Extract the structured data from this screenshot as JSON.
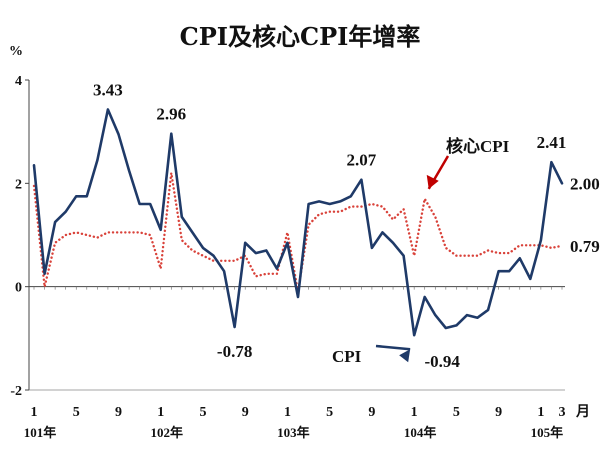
{
  "chart_data": {
    "type": "line",
    "title": "CPI及核心CPI年增率",
    "ylabel": "%",
    "xlabel": "月",
    "ylim": [
      -2,
      4
    ],
    "y_ticks": [
      "-2",
      "0",
      "2",
      "4"
    ],
    "x_tick_labels": [
      {
        "i": 0,
        "label": "1"
      },
      {
        "i": 4,
        "label": "5"
      },
      {
        "i": 8,
        "label": "9"
      },
      {
        "i": 12,
        "label": "1"
      },
      {
        "i": 16,
        "label": "5"
      },
      {
        "i": 20,
        "label": "9"
      },
      {
        "i": 24,
        "label": "1"
      },
      {
        "i": 28,
        "label": "5"
      },
      {
        "i": 32,
        "label": "9"
      },
      {
        "i": 36,
        "label": "1"
      },
      {
        "i": 40,
        "label": "5"
      },
      {
        "i": 44,
        "label": "9"
      },
      {
        "i": 48,
        "label": "1"
      },
      {
        "i": 50,
        "label": "3"
      }
    ],
    "year_labels": [
      {
        "i": 0,
        "label": "101年"
      },
      {
        "i": 12,
        "label": "102年"
      },
      {
        "i": 24,
        "label": "103年"
      },
      {
        "i": 36,
        "label": "104年"
      },
      {
        "i": 48,
        "label": "105年"
      }
    ],
    "series": [
      {
        "name": "CPI",
        "color": "#1f3a68",
        "style": "solid",
        "values": [
          2.35,
          0.25,
          1.25,
          1.45,
          1.75,
          1.75,
          2.45,
          3.43,
          2.95,
          2.25,
          1.6,
          1.6,
          1.1,
          2.96,
          1.35,
          1.05,
          0.75,
          0.6,
          0.3,
          -0.78,
          0.85,
          0.65,
          0.7,
          0.35,
          0.85,
          -0.2,
          1.6,
          1.65,
          1.6,
          1.65,
          1.75,
          2.07,
          0.75,
          1.05,
          0.85,
          0.6,
          -0.94,
          -0.2,
          -0.55,
          -0.8,
          -0.75,
          -0.55,
          -0.6,
          -0.45,
          0.3,
          0.3,
          0.55,
          0.15,
          0.9,
          2.41,
          2.0
        ]
      },
      {
        "name": "核心CPI",
        "color": "#d9423a",
        "style": "dotted",
        "values": [
          1.95,
          0.0,
          0.85,
          1.0,
          1.05,
          1.0,
          0.95,
          1.05,
          1.05,
          1.05,
          1.05,
          1.0,
          0.35,
          2.2,
          0.9,
          0.7,
          0.6,
          0.5,
          0.5,
          0.5,
          0.6,
          0.2,
          0.25,
          0.25,
          1.05,
          -0.1,
          1.2,
          1.4,
          1.45,
          1.45,
          1.55,
          1.55,
          1.6,
          1.55,
          1.3,
          1.5,
          0.6,
          1.7,
          1.35,
          0.75,
          0.6,
          0.6,
          0.6,
          0.7,
          0.65,
          0.65,
          0.8,
          0.8,
          0.8,
          0.75,
          0.79
        ]
      }
    ],
    "annotations": [
      {
        "text": "3.43",
        "series": 0,
        "i": 7,
        "pos": "above"
      },
      {
        "text": "2.96",
        "series": 0,
        "i": 13,
        "pos": "above"
      },
      {
        "text": "-0.78",
        "series": 0,
        "i": 19,
        "pos": "below"
      },
      {
        "text": "2.07",
        "series": 0,
        "i": 31,
        "pos": "above"
      },
      {
        "text": "-0.94",
        "series": 0,
        "i": 36,
        "pos": "below-right"
      },
      {
        "text": "2.41",
        "series": 0,
        "i": 49,
        "pos": "above"
      },
      {
        "text": "2.00",
        "series": 0,
        "i": 50,
        "pos": "right"
      },
      {
        "text": "0.79",
        "series": 1,
        "i": 50,
        "pos": "right",
        "color": "#c00000"
      }
    ],
    "callouts": [
      {
        "text": "CPI",
        "series": 0
      },
      {
        "text": "核心CPI",
        "series": 1
      }
    ]
  }
}
